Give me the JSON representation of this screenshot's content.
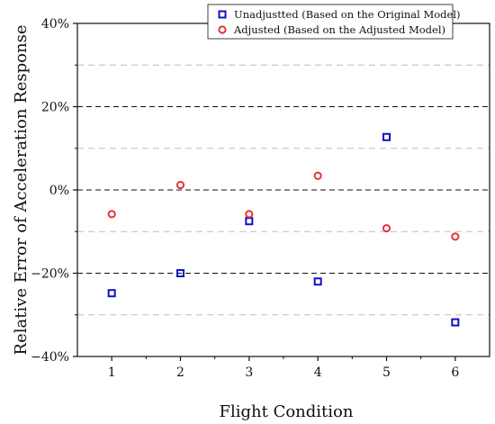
{
  "chart_data": {
    "type": "scatter",
    "xlabel": "Flight Condition",
    "ylabel": "Relative Error of Acceleration Response",
    "xlim": [
      0.5,
      6.5
    ],
    "ylim": [
      -40,
      40
    ],
    "x_ticks": [
      "1",
      "2",
      "3",
      "4",
      "5",
      "6"
    ],
    "y_ticks": [
      "40%",
      "20%",
      "0%",
      "−20%",
      "−40%"
    ],
    "y_tick_values": [
      40,
      20,
      0,
      -20,
      -40
    ],
    "major_gridlines_y": [
      20,
      0,
      -20
    ],
    "minor_gridlines_y": [
      30,
      10,
      -10,
      -30
    ],
    "legend_position": "top-right",
    "series": [
      {
        "name": "Unadjustted (Based on the Original Model)",
        "marker": "square",
        "color": "#1010c8",
        "x": [
          1,
          2,
          3,
          4,
          5,
          6
        ],
        "y": [
          -24.8,
          -20.0,
          -7.5,
          -22.0,
          12.7,
          -31.8
        ]
      },
      {
        "name": "Adjusted (Based on the Adjusted Model)",
        "marker": "circle",
        "color": "#e8333c",
        "x": [
          1,
          2,
          3,
          4,
          5,
          6
        ],
        "y": [
          -5.8,
          1.2,
          -5.8,
          3.4,
          -9.2,
          -11.2
        ]
      }
    ]
  }
}
